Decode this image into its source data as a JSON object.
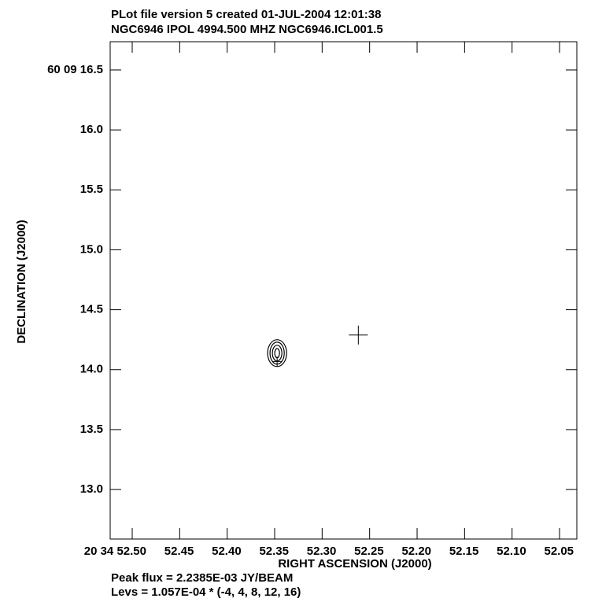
{
  "chart_data": {
    "type": "contour",
    "title": "PLot file version 5  created 01-JUL-2004 12:01:38",
    "subtitle": "NGC6946  IPOL  4994.500 MHZ  NGC6946.ICL001.5",
    "x_label": "RIGHT ASCENSION (J2000)",
    "y_label": "DECLINATION (J2000)",
    "notes": [
      "Peak flux =  2.2385E-03 JY/BEAM",
      "Levs = 1.057E-04 * (-4, 4, 8, 12, 16)"
    ],
    "xlim": [
      52.5232,
      52.0318
    ],
    "ylim": [
      12.587,
      16.736
    ],
    "xticks": [
      {
        "value": 52.5,
        "label": "20 34 52.50"
      },
      {
        "value": 52.45,
        "label": "52.45"
      },
      {
        "value": 52.4,
        "label": "52.40"
      },
      {
        "value": 52.35,
        "label": "52.35"
      },
      {
        "value": 52.3,
        "label": "52.30"
      },
      {
        "value": 52.25,
        "label": "52.25"
      },
      {
        "value": 52.2,
        "label": "52.20"
      },
      {
        "value": 52.15,
        "label": "52.15"
      },
      {
        "value": 52.1,
        "label": "52.10"
      },
      {
        "value": 52.05,
        "label": "52.05"
      }
    ],
    "yticks": [
      {
        "value": 16.5,
        "label": "60 09 16.5"
      },
      {
        "value": 16,
        "label": "16.0"
      },
      15.5,
      {
        "value": 15,
        "label": "15.0"
      },
      14.5,
      {
        "value": 14,
        "label": "14.0"
      },
      13.5,
      {
        "value": 13,
        "label": "13.0"
      }
    ],
    "contours": {
      "x": [
        52.3474,
        52.3474,
        52.3474,
        52.3474
      ],
      "y": [
        14.138,
        14.138,
        14.138,
        14.138
      ],
      "x_radius": [
        0.01,
        0.0075,
        0.005,
        0.0025
      ],
      "y_radius": [
        0.112,
        0.092,
        0.066,
        0.039
      ]
    },
    "markers": {
      "x": [
        52.2619,
        52.3474
      ],
      "y": [
        14.289,
        14.068
      ]
    },
    "color": "#000000"
  }
}
